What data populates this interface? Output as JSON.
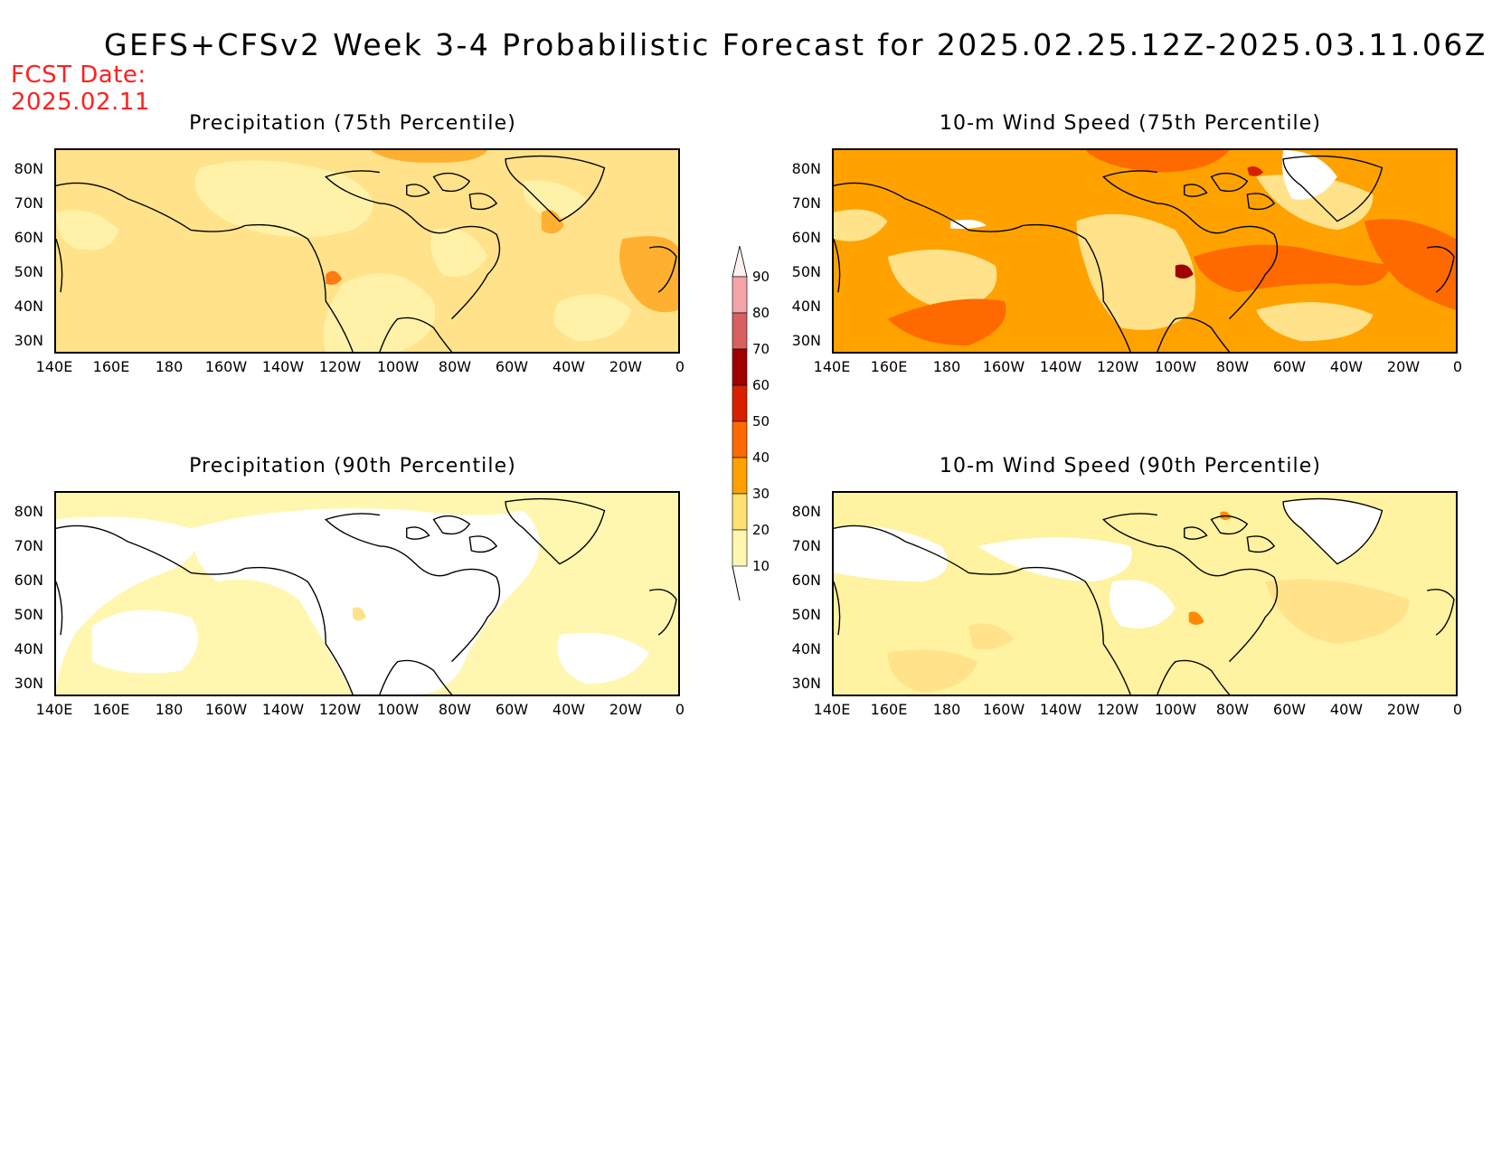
{
  "title": "GEFS+CFSv2 Week 3-4 Probabilistic Forecast for 2025.02.25.12Z-2025.03.11.06Z",
  "fcst_label": "FCST Date:",
  "fcst_date": "2025.02.11",
  "lat_labels": [
    "80N",
    "70N",
    "60N",
    "50N",
    "40N",
    "30N"
  ],
  "lon_labels": [
    "140E",
    "160E",
    "180",
    "160W",
    "140W",
    "120W",
    "100W",
    "80W",
    "60W",
    "40W",
    "20W",
    "0"
  ],
  "colorbar": {
    "levels": [
      "90",
      "80",
      "70",
      "60",
      "50",
      "40",
      "30",
      "20",
      "10"
    ],
    "colors": [
      "#fff0f0",
      "#f4a4a8",
      "#d86060",
      "#a00000",
      "#d82000",
      "#ff6a00",
      "#ffa000",
      "#ffe070",
      "#fff7b0"
    ]
  },
  "panels": [
    {
      "title": "Precipitation (75th Percentile)",
      "base": "#ffe28a",
      "dominant": "20-30"
    },
    {
      "title": "10-m Wind Speed (75th Percentile)",
      "base": "#ffa200",
      "dominant": "30-40"
    },
    {
      "title": "Precipitation (90th Percentile)",
      "base": "#fff7b0",
      "dominant": "10-20"
    },
    {
      "title": "10-m Wind Speed (90th Percentile)",
      "base": "#fff2a0",
      "dominant": "10-20"
    }
  ]
}
